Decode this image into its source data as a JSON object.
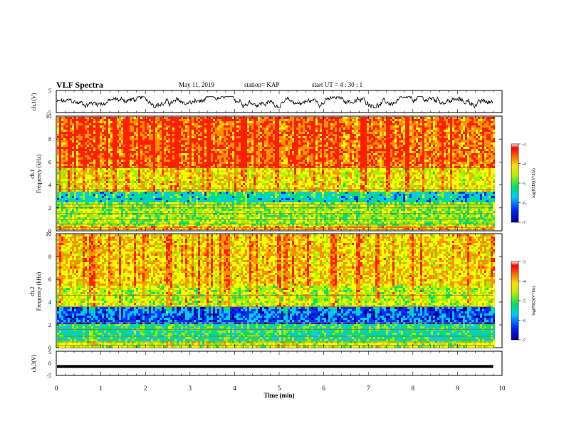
{
  "header": {
    "title": "VLF Spectra",
    "date": "May 11, 2019",
    "station": "station= KAP",
    "start_ut": "start  UT =   4 : 30 : 1"
  },
  "colors": {
    "spectrogram_scale": [
      "#0000a0",
      "#0030ff",
      "#00c8ff",
      "#00e070",
      "#a0f000",
      "#ffff00",
      "#ff9000",
      "#ff2000"
    ]
  },
  "chart_data": [
    {
      "type": "line",
      "panel": "ch1-waveform",
      "ylabel": "ch.1(V)",
      "ylim": [
        -5,
        5
      ],
      "yticks": [
        "5",
        "-5"
      ],
      "xlim": [
        0,
        10
      ],
      "description_values": "noisy signal oscillating roughly between -2.5 V and 2 V over 0–9.8 min"
    },
    {
      "type": "heatmap",
      "panel": "ch1-spectrogram",
      "ylabel": "ch.1\nFrequency (kHz)",
      "ylim": [
        0,
        10
      ],
      "yticks": [
        "0",
        "2",
        "4",
        "6",
        "8",
        "10"
      ],
      "xlim": [
        0,
        10
      ],
      "data_end_min": 9.8,
      "colorbar": {
        "label": "log(PSD)(V²/Hz)",
        "range": [
          -7,
          -3
        ],
        "ticks": [
          "-3",
          "-4",
          "-5",
          "-6",
          "-7"
        ]
      },
      "bands_khz": [
        {
          "from": 5.5,
          "to": 10,
          "level": -3.6
        },
        {
          "from": 3.6,
          "to": 5.5,
          "level": -4.3
        },
        {
          "from": 2.6,
          "to": 3.6,
          "level": -5.6
        },
        {
          "from": 0.6,
          "to": 2.6,
          "level": -4.8
        },
        {
          "from": 0,
          "to": 0.6,
          "level": -4.0
        }
      ],
      "lines_khz": [
        0.1,
        0.3,
        0.6,
        1.0,
        1.5,
        2.0,
        2.3,
        3.6,
        5.5
      ]
    },
    {
      "type": "heatmap",
      "panel": "ch2-spectrogram",
      "ylabel": "ch.2\nFrequency (kHz)",
      "ylim": [
        0,
        10
      ],
      "yticks": [
        "0",
        "2",
        "4",
        "6",
        "8",
        "10"
      ],
      "xlim": [
        0,
        10
      ],
      "data_end_min": 9.8,
      "colorbar": {
        "label": "log(PSD)(V²/Hz)",
        "range": [
          -7,
          -3
        ],
        "ticks": [
          "-3",
          "-4",
          "-5",
          "-6",
          "-7"
        ]
      },
      "bands_khz": [
        {
          "from": 5.5,
          "to": 10,
          "level": -4.1
        },
        {
          "from": 3.6,
          "to": 5.5,
          "level": -4.6
        },
        {
          "from": 2.2,
          "to": 3.6,
          "level": -6.2
        },
        {
          "from": 0.6,
          "to": 2.2,
          "level": -5.3
        },
        {
          "from": 0,
          "to": 0.6,
          "level": -4.6
        }
      ],
      "lines_khz": [
        0.2,
        0.5,
        1.0,
        1.6,
        2.2,
        3.6,
        4.6
      ]
    },
    {
      "type": "line",
      "panel": "ch3-waveform",
      "ylabel": "ch.3(V)",
      "ylim": [
        -5,
        5
      ],
      "yticks": [
        "5",
        "0",
        "-5"
      ],
      "xlim": [
        0,
        10
      ],
      "constant_value_v": -1.3
    }
  ],
  "x_axis": {
    "label": "Time (min)",
    "ticks": [
      "0",
      "1",
      "2",
      "3",
      "4",
      "5",
      "6",
      "7",
      "8",
      "9",
      "10"
    ]
  }
}
